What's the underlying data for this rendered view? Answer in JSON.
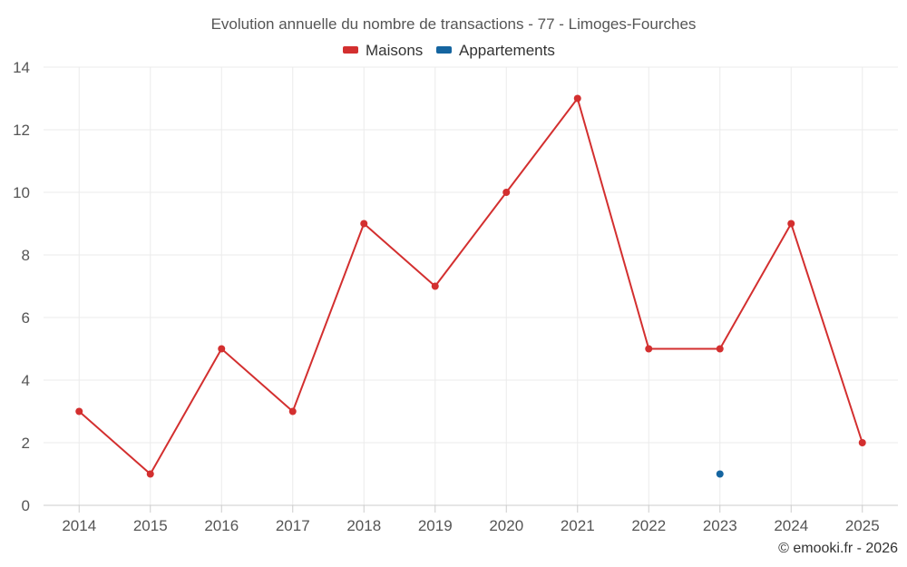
{
  "chart_data": {
    "type": "line",
    "title": "Evolution annuelle du nombre de transactions - 77 - Limoges-Fourches",
    "categories": [
      "2014",
      "2015",
      "2016",
      "2017",
      "2018",
      "2019",
      "2020",
      "2021",
      "2022",
      "2023",
      "2024",
      "2025"
    ],
    "series": [
      {
        "name": "Maisons",
        "color": "#d32f2f",
        "values": [
          3,
          1,
          5,
          3,
          9,
          7,
          10,
          13,
          5,
          5,
          9,
          2
        ]
      },
      {
        "name": "Appartements",
        "color": "#1565a0",
        "values": [
          null,
          null,
          null,
          null,
          null,
          null,
          null,
          null,
          null,
          1,
          null,
          null
        ]
      }
    ],
    "ylim": [
      0,
      14
    ],
    "yticks": [
      0,
      2,
      4,
      6,
      8,
      10,
      12,
      14
    ],
    "xlabel": "",
    "ylabel": "",
    "grid": true,
    "legend": "top-center"
  },
  "credit": "© emooki.fr - 2026"
}
